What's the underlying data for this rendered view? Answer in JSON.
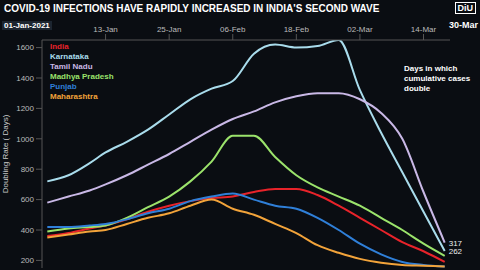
{
  "chart_data": {
    "type": "line",
    "title": "COVID-19 INFECTIONS HAVE RAPIDLY INCREASED IN INDIA'S SECOND WAVE",
    "logo": "DiU",
    "date_start": "01-Jan-2021",
    "date_current": "30-Mar",
    "annotation": "Days in which cumulative cases double",
    "y_label": "Doubling Rate ( Days)",
    "x": [
      2,
      6,
      10,
      13,
      17,
      21,
      25,
      29,
      33,
      37,
      41,
      45,
      49,
      53,
      57,
      61,
      65,
      69,
      73,
      77
    ],
    "xlim": [
      1,
      78
    ],
    "xticks": [
      {
        "value": 13,
        "label": "13-Jan"
      },
      {
        "value": 25,
        "label": "25-Jan"
      },
      {
        "value": 37,
        "label": "06-Feb"
      },
      {
        "value": 49,
        "label": "18-Feb"
      },
      {
        "value": 61,
        "label": "02-Mar"
      },
      {
        "value": 73,
        "label": "14-Mar"
      }
    ],
    "ylim": [
      150,
      1650
    ],
    "yticks": [
      200,
      400,
      600,
      800,
      1000,
      1200,
      1400,
      1600
    ],
    "grid": false,
    "legend": "upper left",
    "series": [
      {
        "name": "India",
        "color": "#e8232a",
        "values": [
          360,
          380,
          410,
          430,
          470,
          520,
          560,
          590,
          610,
          620,
          650,
          670,
          670,
          630,
          560,
          480,
          400,
          320,
          260,
          190
        ]
      },
      {
        "name": "Karnataka",
        "color": "#a9dcec",
        "data_labels": true,
        "values": [
          720,
          760,
          840,
          910,
          980,
          1060,
          1160,
          1260,
          1330,
          1380,
          1560,
          1620,
          1600,
          1610,
          1650,
          1320,
          1040,
          780,
          520,
          262
        ]
      },
      {
        "name": "Tamil Nadu",
        "color": "#c9b8e6",
        "data_labels": true,
        "values": [
          580,
          620,
          660,
          700,
          760,
          830,
          900,
          980,
          1060,
          1130,
          1180,
          1240,
          1280,
          1300,
          1300,
          1260,
          1170,
          1000,
          650,
          317
        ]
      },
      {
        "name": "Madhya Pradesh",
        "color": "#9be36b",
        "values": [
          390,
          410,
          420,
          430,
          480,
          550,
          620,
          720,
          850,
          1020,
          1020,
          880,
          760,
          680,
          620,
          560,
          480,
          400,
          310,
          230
        ]
      },
      {
        "name": "Punjab",
        "color": "#2f7fd8",
        "values": [
          420,
          420,
          430,
          440,
          470,
          510,
          540,
          590,
          620,
          640,
          600,
          560,
          540,
          480,
          400,
          310,
          240,
          190,
          170,
          160
        ]
      },
      {
        "name": "Maharashtra",
        "color": "#f2a33a",
        "values": [
          350,
          370,
          390,
          400,
          440,
          480,
          510,
          560,
          600,
          540,
          500,
          440,
          380,
          300,
          250,
          210,
          185,
          170,
          165,
          160
        ]
      }
    ]
  }
}
